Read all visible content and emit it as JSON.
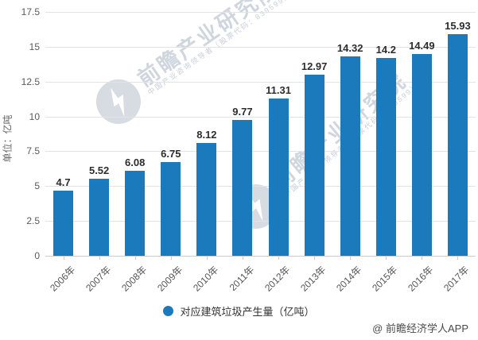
{
  "chart_data": {
    "type": "bar",
    "title": "",
    "categories": [
      "2006年",
      "2007年",
      "2008年",
      "2009年",
      "2010年",
      "2011年",
      "2012年",
      "2013年",
      "2014年",
      "2015年",
      "2016年",
      "2017年"
    ],
    "values": [
      4.7,
      5.52,
      6.08,
      6.75,
      8.12,
      9.77,
      11.31,
      12.97,
      14.32,
      14.2,
      14.49,
      15.93
    ],
    "xlabel": "",
    "ylabel": "单位：亿吨",
    "yticks": [
      "0",
      "2.5",
      "5",
      "7.5",
      "10",
      "12.5",
      "15",
      "17.5"
    ],
    "ylim": [
      0,
      17.5
    ],
    "grid": true,
    "legend": "对应建筑垃圾产生量（亿吨）",
    "legend_position": "bottom",
    "bar_color": "#1b7abc"
  },
  "watermark": {
    "main_text": "前瞻产业研究院",
    "sub_text": "中国产业咨询领导者（股票代码：839599）",
    "logo": "qianzhan-logo"
  },
  "attribution": "@ 前瞻经济学人APP",
  "colors": {
    "bar": "#1b7abc",
    "gridline": "#e3e3e3",
    "axis": "#cccccc",
    "tick_text": "#5a5a5a",
    "value_text": "#2d2d2d",
    "legend_text": "#333333",
    "watermark": "#aab4c3"
  }
}
